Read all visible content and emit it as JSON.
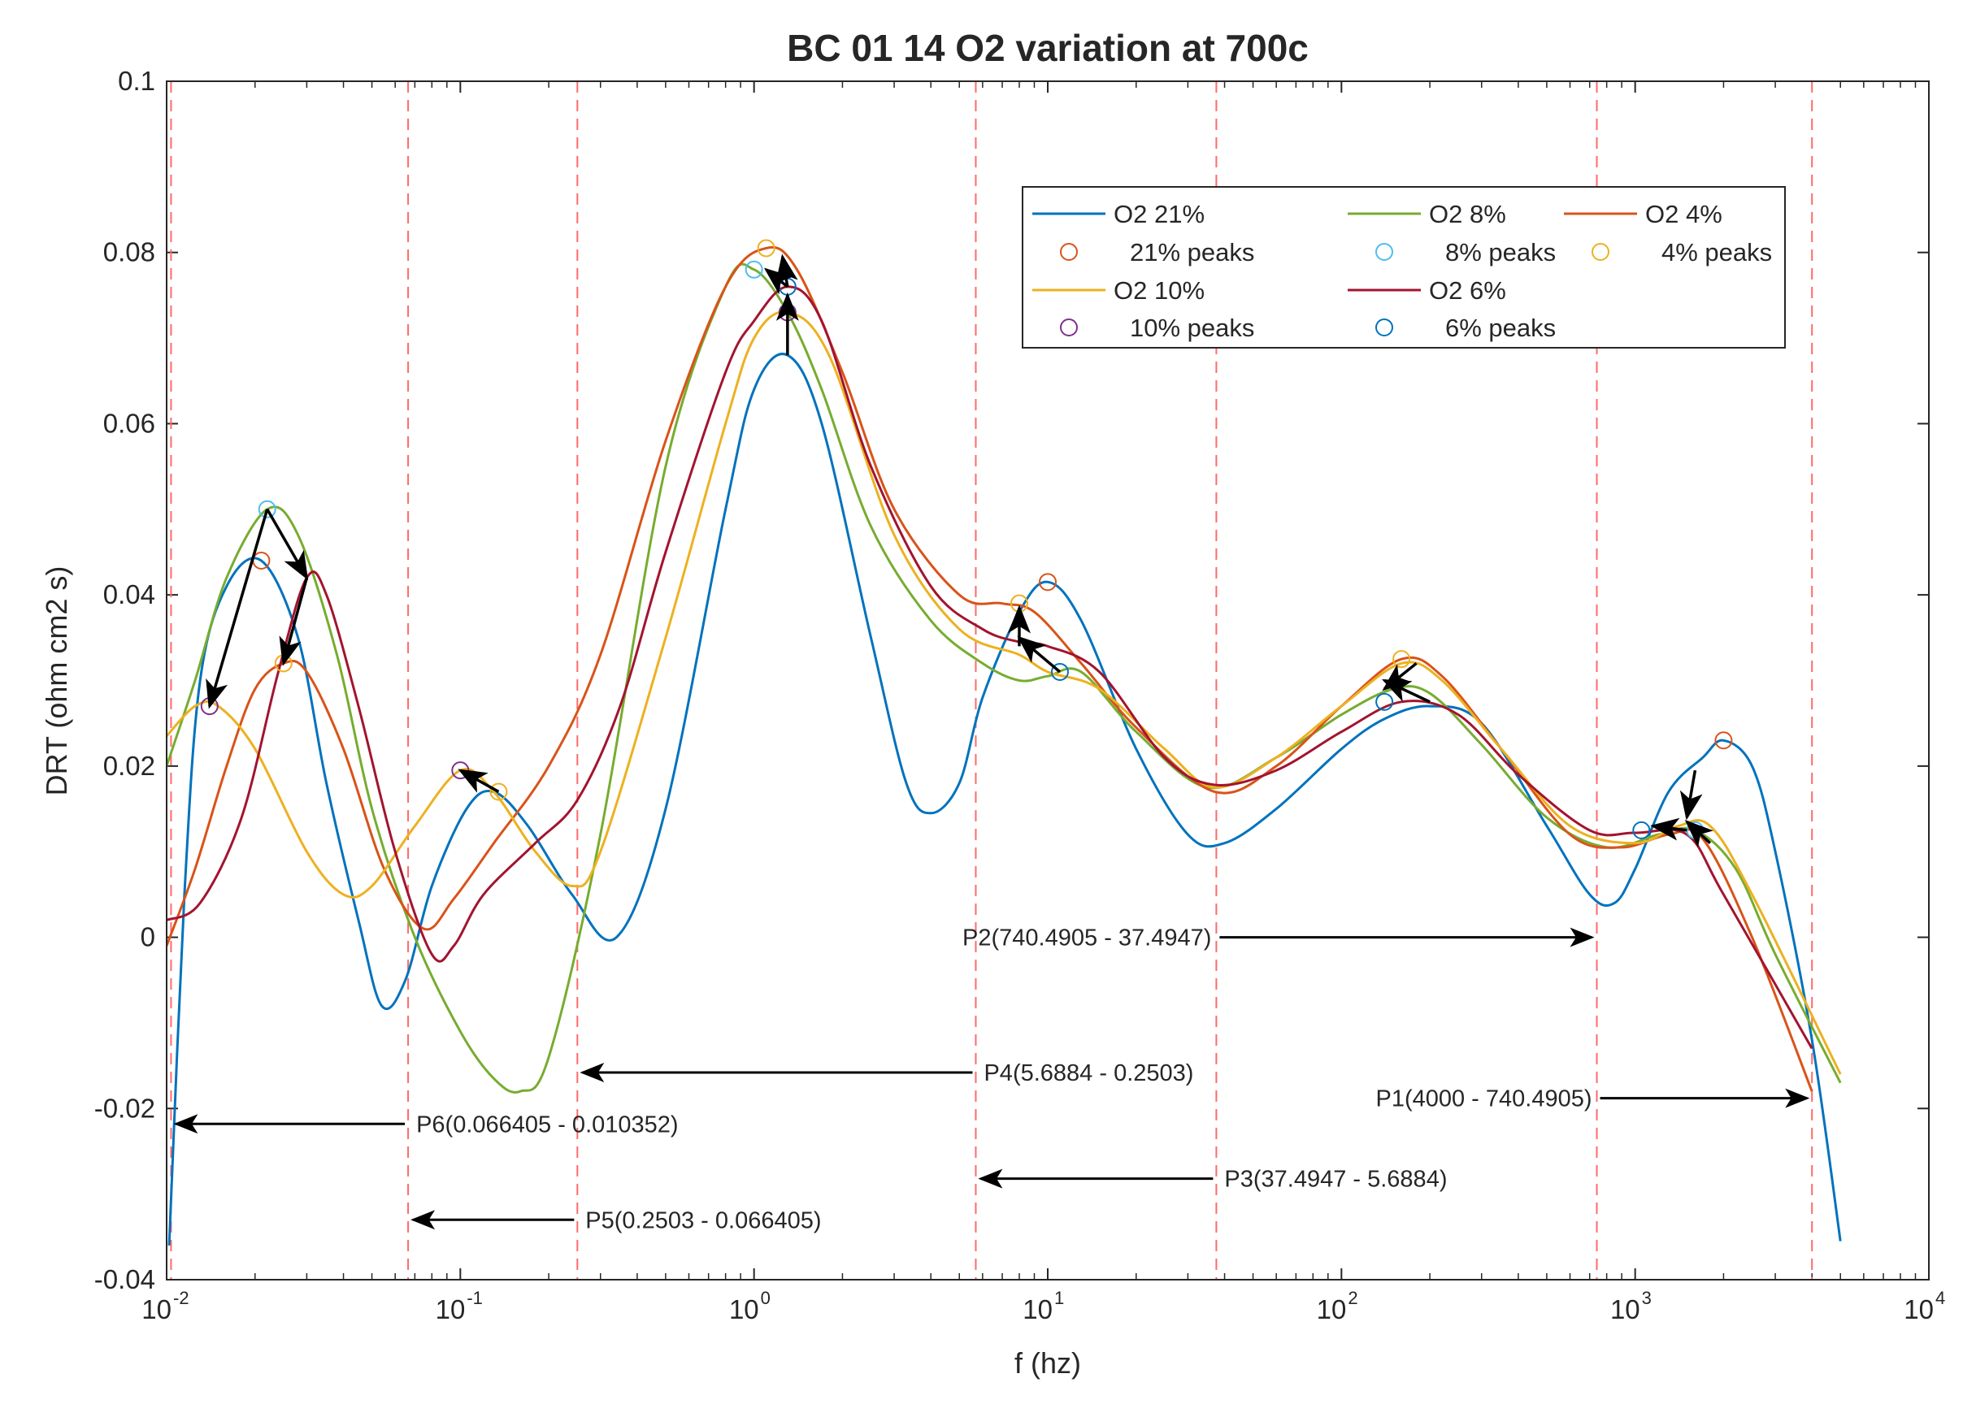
{
  "chart_data": {
    "type": "line",
    "title": "BC 01 14 O2 variation at 700c",
    "xlabel": "f (hz)",
    "ylabel": "DRT (ohm cm2 s)",
    "xscale": "log",
    "xlim": [
      0.01,
      10000
    ],
    "ylim": [
      -0.04,
      0.1
    ],
    "x_ticks": [
      {
        "base": "10",
        "exp": "-2",
        "value": 0.01
      },
      {
        "base": "10",
        "exp": "-1",
        "value": 0.1
      },
      {
        "base": "10",
        "exp": "0",
        "value": 1
      },
      {
        "base": "10",
        "exp": "1",
        "value": 10
      },
      {
        "base": "10",
        "exp": "2",
        "value": 100
      },
      {
        "base": "10",
        "exp": "3",
        "value": 1000
      },
      {
        "base": "10",
        "exp": "4",
        "value": 10000
      }
    ],
    "y_ticks": [
      {
        "label": "-0.04",
        "value": -0.04
      },
      {
        "label": "-0.02",
        "value": -0.02
      },
      {
        "label": "0",
        "value": 0
      },
      {
        "label": "0.02",
        "value": 0.02
      },
      {
        "label": "0.04",
        "value": 0.04
      },
      {
        "label": "0.06",
        "value": 0.06
      },
      {
        "label": "0.08",
        "value": 0.08
      },
      {
        "label": "0.1",
        "value": 0.1
      }
    ],
    "legend_location": "top-right",
    "series": [
      {
        "name": "O2 21%",
        "color": "#0072BD",
        "points": [
          [
            0.0102,
            -0.036
          ],
          [
            0.0115,
            0.005
          ],
          [
            0.013,
            0.03
          ],
          [
            0.016,
            0.041
          ],
          [
            0.021,
            0.044
          ],
          [
            0.028,
            0.035
          ],
          [
            0.035,
            0.018
          ],
          [
            0.045,
            0.002
          ],
          [
            0.054,
            -0.008
          ],
          [
            0.065,
            -0.005
          ],
          [
            0.08,
            0.006
          ],
          [
            0.105,
            0.015
          ],
          [
            0.13,
            0.017
          ],
          [
            0.17,
            0.013
          ],
          [
            0.24,
            0.005
          ],
          [
            0.34,
            0.0
          ],
          [
            0.5,
            0.015
          ],
          [
            0.8,
            0.05
          ],
          [
            1.0,
            0.064
          ],
          [
            1.3,
            0.068
          ],
          [
            1.7,
            0.06
          ],
          [
            2.5,
            0.035
          ],
          [
            3.3,
            0.018
          ],
          [
            4.0,
            0.0145
          ],
          [
            5.0,
            0.018
          ],
          [
            6.0,
            0.028
          ],
          [
            8.0,
            0.038
          ],
          [
            10.0,
            0.0415
          ],
          [
            13.0,
            0.037
          ],
          [
            20.0,
            0.022
          ],
          [
            30.0,
            0.012
          ],
          [
            40.0,
            0.011
          ],
          [
            60.0,
            0.015
          ],
          [
            100.0,
            0.022
          ],
          [
            140.0,
            0.0255
          ],
          [
            200.0,
            0.027
          ],
          [
            300.0,
            0.025
          ],
          [
            500.0,
            0.013
          ],
          [
            700.0,
            0.005
          ],
          [
            850.0,
            0.004
          ],
          [
            1000.0,
            0.008
          ],
          [
            1300.0,
            0.017
          ],
          [
            1700.0,
            0.021
          ],
          [
            2000.0,
            0.023
          ],
          [
            2500.0,
            0.02
          ],
          [
            3000.0,
            0.01
          ],
          [
            4000.0,
            -0.012
          ],
          [
            5000.0,
            -0.0355
          ]
        ]
      },
      {
        "name": "O2 8%",
        "color": "#77AC30",
        "points": [
          [
            0.01,
            0.02
          ],
          [
            0.0125,
            0.03
          ],
          [
            0.016,
            0.042
          ],
          [
            0.022,
            0.05
          ],
          [
            0.028,
            0.047
          ],
          [
            0.038,
            0.033
          ],
          [
            0.05,
            0.015
          ],
          [
            0.07,
            0.0
          ],
          [
            0.1,
            -0.011
          ],
          [
            0.13,
            -0.0165
          ],
          [
            0.16,
            -0.018
          ],
          [
            0.2,
            -0.014
          ],
          [
            0.3,
            0.012
          ],
          [
            0.5,
            0.055
          ],
          [
            0.8,
            0.076
          ],
          [
            1.0,
            0.078
          ],
          [
            1.3,
            0.073
          ],
          [
            1.7,
            0.064
          ],
          [
            2.5,
            0.048
          ],
          [
            4.0,
            0.037
          ],
          [
            6.0,
            0.032
          ],
          [
            8.0,
            0.03
          ],
          [
            10.0,
            0.0305
          ],
          [
            13.0,
            0.031
          ],
          [
            20.0,
            0.024
          ],
          [
            35.0,
            0.0175
          ],
          [
            60.0,
            0.021
          ],
          [
            100.0,
            0.026
          ],
          [
            150.0,
            0.029
          ],
          [
            200.0,
            0.0285
          ],
          [
            300.0,
            0.0225
          ],
          [
            500.0,
            0.014
          ],
          [
            800.0,
            0.0105
          ],
          [
            1200.0,
            0.012
          ],
          [
            1600.0,
            0.0125
          ],
          [
            2200.0,
            0.008
          ],
          [
            3000.0,
            -0.002
          ],
          [
            5000.0,
            -0.017
          ]
        ]
      },
      {
        "name": "O2 4%",
        "color": "#D95319",
        "points": [
          [
            0.01,
            -0.001
          ],
          [
            0.0125,
            0.008
          ],
          [
            0.016,
            0.02
          ],
          [
            0.02,
            0.029
          ],
          [
            0.025,
            0.032
          ],
          [
            0.03,
            0.031
          ],
          [
            0.04,
            0.022
          ],
          [
            0.055,
            0.008
          ],
          [
            0.075,
            0.001
          ],
          [
            0.095,
            0.0045
          ],
          [
            0.13,
            0.011
          ],
          [
            0.2,
            0.02
          ],
          [
            0.3,
            0.033
          ],
          [
            0.5,
            0.058
          ],
          [
            0.8,
            0.076
          ],
          [
            1.1,
            0.0805
          ],
          [
            1.4,
            0.078
          ],
          [
            2.0,
            0.066
          ],
          [
            3.0,
            0.05
          ],
          [
            5.0,
            0.04
          ],
          [
            7.0,
            0.039
          ],
          [
            9.0,
            0.038
          ],
          [
            13.0,
            0.032
          ],
          [
            20.0,
            0.0245
          ],
          [
            37.0,
            0.017
          ],
          [
            60.0,
            0.02
          ],
          [
            100.0,
            0.027
          ],
          [
            160.0,
            0.0325
          ],
          [
            220.0,
            0.0305
          ],
          [
            350.0,
            0.022
          ],
          [
            600.0,
            0.012
          ],
          [
            900.0,
            0.0105
          ],
          [
            1300.0,
            0.012
          ],
          [
            1700.0,
            0.0115
          ],
          [
            2500.0,
            0.0
          ],
          [
            4000.0,
            -0.018
          ]
        ]
      },
      {
        "name": "O2 10%",
        "color": "#EDB120",
        "points": [
          [
            0.01,
            0.0235
          ],
          [
            0.0125,
            0.027
          ],
          [
            0.015,
            0.027
          ],
          [
            0.02,
            0.022
          ],
          [
            0.03,
            0.01
          ],
          [
            0.04,
            0.005
          ],
          [
            0.05,
            0.006
          ],
          [
            0.07,
            0.013
          ],
          [
            0.1,
            0.0195
          ],
          [
            0.13,
            0.017
          ],
          [
            0.18,
            0.01
          ],
          [
            0.24,
            0.006
          ],
          [
            0.3,
            0.01
          ],
          [
            0.5,
            0.035
          ],
          [
            0.8,
            0.06
          ],
          [
            1.0,
            0.07
          ],
          [
            1.3,
            0.073
          ],
          [
            1.8,
            0.068
          ],
          [
            3.0,
            0.047
          ],
          [
            5.0,
            0.036
          ],
          [
            8.0,
            0.033
          ],
          [
            10.0,
            0.031
          ],
          [
            15.0,
            0.029
          ],
          [
            25.0,
            0.022
          ],
          [
            37.0,
            0.0175
          ],
          [
            60.0,
            0.021
          ],
          [
            100.0,
            0.027
          ],
          [
            160.0,
            0.032
          ],
          [
            220.0,
            0.03
          ],
          [
            350.0,
            0.022
          ],
          [
            600.0,
            0.013
          ],
          [
            1000.0,
            0.011
          ],
          [
            1400.0,
            0.013
          ],
          [
            1800.0,
            0.013
          ],
          [
            2500.0,
            0.005
          ],
          [
            5000.0,
            -0.016
          ]
        ]
      },
      {
        "name": "O2 6%",
        "color": "#A2142F",
        "points": [
          [
            0.01,
            0.002
          ],
          [
            0.013,
            0.004
          ],
          [
            0.018,
            0.014
          ],
          [
            0.024,
            0.031
          ],
          [
            0.03,
            0.042
          ],
          [
            0.035,
            0.04
          ],
          [
            0.045,
            0.027
          ],
          [
            0.06,
            0.01
          ],
          [
            0.08,
            -0.002
          ],
          [
            0.095,
            -0.001
          ],
          [
            0.12,
            0.005
          ],
          [
            0.18,
            0.011
          ],
          [
            0.25,
            0.016
          ],
          [
            0.35,
            0.027
          ],
          [
            0.5,
            0.045
          ],
          [
            0.8,
            0.066
          ],
          [
            1.0,
            0.072
          ],
          [
            1.3,
            0.076
          ],
          [
            1.7,
            0.072
          ],
          [
            2.5,
            0.055
          ],
          [
            4.0,
            0.041
          ],
          [
            6.0,
            0.036
          ],
          [
            8.0,
            0.0345
          ],
          [
            10.0,
            0.034
          ],
          [
            15.0,
            0.031
          ],
          [
            25.0,
            0.021
          ],
          [
            37.0,
            0.0178
          ],
          [
            60.0,
            0.0195
          ],
          [
            100.0,
            0.024
          ],
          [
            160.0,
            0.0275
          ],
          [
            250.0,
            0.026
          ],
          [
            400.0,
            0.019
          ],
          [
            700.0,
            0.0125
          ],
          [
            1000.0,
            0.0122
          ],
          [
            1500.0,
            0.012
          ],
          [
            2000.0,
            0.005
          ],
          [
            4000.0,
            -0.013
          ]
        ]
      }
    ],
    "peaks": [
      {
        "name": "21% peaks",
        "color": "#D95319",
        "points": [
          [
            0.021,
            0.044
          ],
          [
            10.0,
            0.0415
          ],
          [
            2000.0,
            0.023
          ]
        ]
      },
      {
        "name": "8% peaks",
        "color": "#4DBEEE",
        "points": [
          [
            0.022,
            0.05
          ],
          [
            1.0,
            0.078
          ],
          [
            1600.0,
            0.0125
          ]
        ]
      },
      {
        "name": "4% peaks",
        "color": "#EDB120",
        "points": [
          [
            0.025,
            0.032
          ],
          [
            1.1,
            0.0805
          ],
          [
            8.0,
            0.039
          ],
          [
            160.0,
            0.0325
          ],
          [
            0.135,
            0.017
          ]
        ]
      },
      {
        "name": "10% peaks",
        "color": "#7E2F8E",
        "points": [
          [
            0.014,
            0.027
          ],
          [
            0.1,
            0.0195
          ],
          [
            1.3,
            0.073
          ]
        ]
      },
      {
        "name": "6% peaks",
        "color": "#0072BD",
        "points": [
          [
            1.3,
            0.076
          ],
          [
            140.0,
            0.0275
          ],
          [
            1050.0,
            0.0125
          ],
          [
            11.0,
            0.031
          ]
        ]
      }
    ],
    "vlines": [
      0.010352,
      0.066405,
      0.2503,
      5.6884,
      37.4947,
      740.4905,
      4000
    ],
    "annotations": [
      {
        "text": "P1(4000 - 740.4905)",
        "y": -0.0188,
        "from": 740.4905,
        "to": 4000
      },
      {
        "text": "P2(740.4905 - 37.4947)",
        "y": 0.0,
        "from": 37.4947,
        "to": 740.4905
      },
      {
        "text": "P3(37.4947 - 5.6884)",
        "y": -0.0282,
        "from": 37.4947,
        "to": 5.6884
      },
      {
        "text": "P4(5.6884 - 0.2503)",
        "y": -0.0158,
        "from": 5.6884,
        "to": 0.2503
      },
      {
        "text": "P5(0.2503 - 0.066405)",
        "y": -0.033,
        "from": 0.2503,
        "to": 0.066405
      },
      {
        "text": "P6(0.066405 - 0.010352)",
        "y": -0.0218,
        "from": 0.066405,
        "to": 0.010352
      }
    ],
    "peak_arrows": [
      {
        "from": [
          0.022,
          0.05
        ],
        "to": [
          0.014,
          0.027
        ]
      },
      {
        "from": [
          0.022,
          0.05
        ],
        "to": [
          0.03,
          0.042
        ]
      },
      {
        "from": [
          0.03,
          0.042
        ],
        "to": [
          0.025,
          0.032
        ]
      },
      {
        "from": [
          0.135,
          0.017
        ],
        "to": [
          0.1,
          0.0195
        ]
      },
      {
        "from": [
          1.3,
          0.068
        ],
        "to": [
          1.3,
          0.075
        ]
      },
      {
        "from": [
          1.3,
          0.076
        ],
        "to": [
          1.1,
          0.078
        ]
      },
      {
        "from": [
          1.3,
          0.076
        ],
        "to": [
          1.25,
          0.0795
        ]
      },
      {
        "from": [
          8.0,
          0.034
        ],
        "to": [
          8.0,
          0.0385
        ]
      },
      {
        "from": [
          11.0,
          0.031
        ],
        "to": [
          8.0,
          0.035
        ]
      },
      {
        "from": [
          200.0,
          0.0275
        ],
        "to": [
          140.0,
          0.03
        ]
      },
      {
        "from": [
          180.0,
          0.032
        ],
        "to": [
          140.0,
          0.029
        ]
      },
      {
        "from": [
          1600.0,
          0.0195
        ],
        "to": [
          1500.0,
          0.014
        ]
      },
      {
        "from": [
          1500.0,
          0.0125
        ],
        "to": [
          1150.0,
          0.013
        ]
      },
      {
        "from": [
          1800.0,
          0.011
        ],
        "to": [
          1500.0,
          0.0135
        ]
      }
    ]
  }
}
